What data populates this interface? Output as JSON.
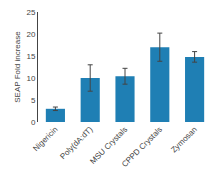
{
  "chart_data": {
    "type": "bar",
    "categories": [
      "Nigericin",
      "Poly(dA:dT)",
      "MSU Crystals",
      "CPPD Crystals",
      "Zymosan"
    ],
    "values": [
      3.0,
      10.0,
      10.4,
      17.0,
      14.8
    ],
    "errors": [
      0.4,
      3.0,
      1.8,
      3.2,
      1.2
    ],
    "color": "#1f7fb4",
    "ylabel": "SEAP Fold increase",
    "ylim": [
      0,
      25
    ],
    "yticks": [
      0,
      5,
      10,
      15,
      20,
      25
    ],
    "grid": false
  }
}
